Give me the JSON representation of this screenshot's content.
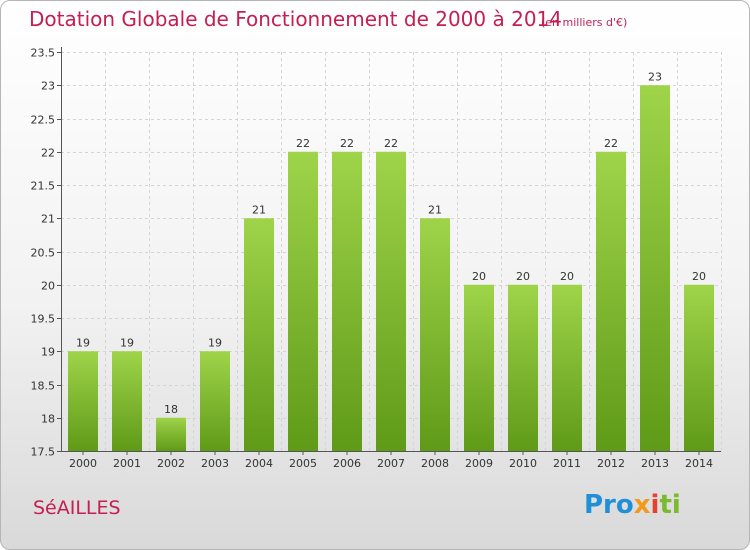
{
  "chart_data": {
    "type": "bar",
    "title": "Dotation Globale de Fonctionnement de 2000 à 2014",
    "subtitle": "(en milliers d'€)",
    "categories": [
      "2000",
      "2001",
      "2002",
      "2003",
      "2004",
      "2005",
      "2006",
      "2007",
      "2008",
      "2009",
      "2010",
      "2011",
      "2012",
      "2013",
      "2014"
    ],
    "values": [
      19,
      19,
      18,
      19,
      21,
      22,
      22,
      22,
      21,
      20,
      20,
      20,
      22,
      23,
      20
    ],
    "ylim": [
      17.5,
      23.5
    ],
    "yticks": [
      "17.5",
      "18",
      "18.5",
      "19",
      "19.5",
      "20",
      "20.5",
      "21",
      "21.5",
      "22",
      "22.5",
      "23",
      "23.5"
    ],
    "xlabel": "",
    "ylabel": "",
    "grid": true,
    "bar_color": "#7dbb2e",
    "bar_color_light": "#9fd44a",
    "bar_color_dark": "#5f9a18"
  },
  "commune": "SéAILLES",
  "logo": {
    "p1": "Pro",
    "p2": "x",
    "p3": "i",
    "p4": "ti"
  },
  "colors": {
    "accent": "#c51e52"
  }
}
